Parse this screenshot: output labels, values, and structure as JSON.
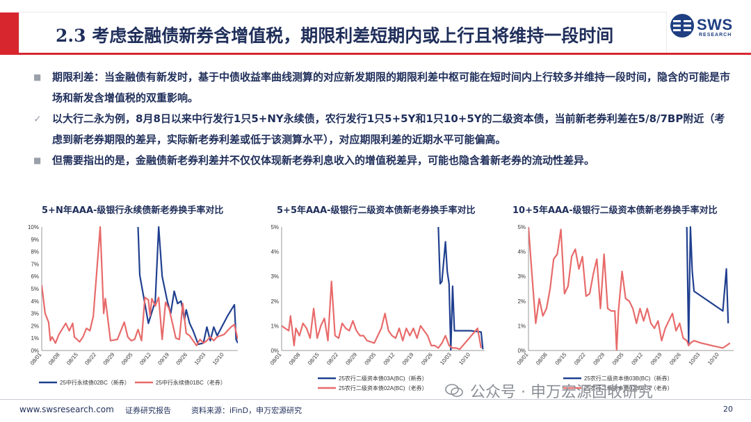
{
  "header": {
    "title": "2.3 考虑金融债新券含增值税，期限利差短期内或上行且将维持一段时间",
    "logo_text": "SWS",
    "logo_sub": "RESEARCH",
    "accent_color": "#d7262e",
    "navy_color": "#1f2e5a"
  },
  "bullets": [
    {
      "marker": "■",
      "text": "期限利差：当金融债有新发时，基于中债收益率曲线测算的对应新发期限的期限利差中枢可能在短时间内上行较多并维持一段时间，隐含的可能是市场和新发含增值税的双重影响。"
    },
    {
      "marker": "✓",
      "text": "以大行二永为例，8月8日以来中行发行1只5+NY永续债，农行发行1只5+5Y和1只10+5Y的二级资本债，当前新老券利差在5/8/7BP附近（考虑到新老券期限的差异，实际新老券利差或低于该测算水平），对应期限利差的近期水平可能偏高。"
    },
    {
      "marker": "■",
      "text": "但需要指出的是，金融债新老券利差并不仅仅体现新老券利息收入的增值税差异，可能也隐含着新老券的流动性差异。"
    }
  ],
  "chart_data": [
    {
      "type": "line",
      "title": "5+N年AAA-级银行永续债新老券换手率对比",
      "x_ticks": [
        "08/01",
        "08/08",
        "08/15",
        "08/22",
        "08/29",
        "09/05",
        "09/12",
        "09/19",
        "09/26",
        "10/03",
        "10/10"
      ],
      "y_ticks": [
        "0%",
        "1%",
        "2%",
        "3%",
        "4%",
        "5%",
        "6%",
        "7%",
        "8%",
        "9%",
        "10%"
      ],
      "ylim": [
        0,
        10
      ],
      "series": [
        {
          "name": "25中行永续债02BC（新券）",
          "color": "#1f3f8f",
          "points": [
            [
              28,
              10
            ],
            [
              28.5,
              6.1
            ],
            [
              31,
              2.2
            ],
            [
              33,
              4
            ],
            [
              34,
              10.2
            ],
            [
              35,
              6
            ],
            [
              36.5,
              4
            ],
            [
              37.5,
              3
            ],
            [
              38.5,
              4.8
            ],
            [
              39.5,
              3.8
            ],
            [
              40.5,
              4
            ],
            [
              41.5,
              2.5
            ],
            [
              42,
              3.3
            ],
            [
              43,
              2.2
            ],
            [
              44,
              1.6
            ],
            [
              45.5,
              0.5
            ],
            [
              47,
              0.6
            ],
            [
              48,
              1.9
            ],
            [
              49,
              0.8
            ],
            [
              50,
              1.9
            ],
            [
              51,
              1.2
            ],
            [
              54,
              2.8
            ],
            [
              56,
              3.7
            ],
            [
              56.5,
              0.9
            ],
            [
              57,
              0.6
            ]
          ]
        },
        {
          "name": "25中行永续债01BC（老券）",
          "color": "#e86a6a",
          "points": [
            [
              0,
              5.3
            ],
            [
              1,
              3
            ],
            [
              2,
              2.3
            ],
            [
              2.5,
              0.8
            ],
            [
              3,
              1.1
            ],
            [
              4,
              0.6
            ],
            [
              5,
              1.3
            ],
            [
              7,
              2.2
            ],
            [
              8,
              1.6
            ],
            [
              9,
              2.2
            ],
            [
              9.5,
              1.1
            ],
            [
              11,
              0.7
            ],
            [
              12,
              1.1
            ],
            [
              13,
              1.8
            ],
            [
              14,
              1.6
            ],
            [
              15,
              2.8
            ],
            [
              17,
              10
            ],
            [
              18,
              3
            ],
            [
              18.5,
              4.2
            ],
            [
              20,
              0.8
            ],
            [
              22,
              0.9
            ],
            [
              24,
              2.3
            ],
            [
              25,
              1.1
            ],
            [
              26,
              0.8
            ],
            [
              27,
              0.9
            ],
            [
              28,
              1.7
            ],
            [
              29,
              0.8
            ],
            [
              30,
              4.3
            ],
            [
              31,
              4.1
            ],
            [
              31.5,
              2.8
            ],
            [
              32,
              4.2
            ],
            [
              33,
              3.6
            ],
            [
              34,
              4.3
            ],
            [
              35,
              0.9
            ],
            [
              36,
              3.9
            ],
            [
              37,
              3.4
            ],
            [
              38,
              2.2
            ],
            [
              39,
              1
            ],
            [
              40,
              0.9
            ],
            [
              41,
              3.8
            ],
            [
              42,
              1.4
            ],
            [
              43,
              1.2
            ],
            [
              44,
              0.8
            ],
            [
              45,
              0.4
            ],
            [
              46,
              0.9
            ],
            [
              47,
              0.6
            ],
            [
              48,
              0.8
            ],
            [
              49,
              1.1
            ],
            [
              50,
              0.8
            ],
            [
              51,
              1.1
            ],
            [
              52,
              1.2
            ],
            [
              53,
              1.3
            ],
            [
              54,
              1.6
            ],
            [
              55,
              1.9
            ],
            [
              56,
              2.1
            ],
            [
              57,
              0.9
            ]
          ]
        }
      ]
    },
    {
      "type": "line",
      "title": "5+5年AAA-级银行二级资本债新老券换手率对比",
      "x_ticks": [
        "08/01",
        "08/08",
        "08/15",
        "08/22",
        "08/29",
        "09/05",
        "09/12",
        "09/19",
        "09/26",
        "10/03",
        "10/10"
      ],
      "y_ticks": [
        "0%",
        "1%",
        "2%",
        "3%",
        "4%",
        "5%"
      ],
      "ylim": [
        0,
        5
      ],
      "series": [
        {
          "name": "25农行二级资本债03A(BC)（新券）",
          "color": "#1f3f8f",
          "points": [
            [
              44,
              5.1
            ],
            [
              44.5,
              2.7
            ],
            [
              45,
              2.8
            ],
            [
              46,
              4.4
            ],
            [
              46.5,
              3.2
            ],
            [
              47,
              2.7
            ],
            [
              47.5,
              0
            ],
            [
              48,
              2.6
            ],
            [
              48.5,
              0.8
            ],
            [
              53,
              0.8
            ],
            [
              56,
              0.75
            ],
            [
              56.5,
              0.05
            ]
          ]
        },
        {
          "name": "25农行二级资本债02A(BC)（老券）",
          "color": "#e86a6a",
          "points": [
            [
              0,
              1
            ],
            [
              1,
              0.9
            ],
            [
              2,
              0.8
            ],
            [
              2.5,
              1.4
            ],
            [
              3,
              0.8
            ],
            [
              3.5,
              0.2
            ],
            [
              4,
              0.9
            ],
            [
              5,
              0.6
            ],
            [
              6,
              1.1
            ],
            [
              7,
              0.9
            ],
            [
              8,
              0.5
            ],
            [
              9,
              1.7
            ],
            [
              10,
              0.5
            ],
            [
              11,
              1
            ],
            [
              12,
              1.3
            ],
            [
              13,
              0.4
            ],
            [
              14,
              2.8
            ],
            [
              15,
              0.6
            ],
            [
              16,
              0.5
            ],
            [
              17,
              1.1
            ],
            [
              18,
              0.9
            ],
            [
              19,
              0.8
            ],
            [
              20,
              1.2
            ],
            [
              21,
              0.8
            ],
            [
              22,
              0.6
            ],
            [
              23,
              0.6
            ],
            [
              24,
              0.4
            ],
            [
              25,
              0.35
            ],
            [
              26,
              0.3
            ],
            [
              27,
              0.6
            ],
            [
              28,
              0.9
            ],
            [
              29,
              1.5
            ],
            [
              30,
              0.8
            ],
            [
              31,
              0.6
            ],
            [
              32,
              0.5
            ],
            [
              33,
              0.9
            ],
            [
              34,
              0.4
            ],
            [
              35,
              0.9
            ],
            [
              36,
              0.6
            ],
            [
              37,
              0.9
            ],
            [
              38,
              0.5
            ],
            [
              39,
              1
            ],
            [
              40,
              0.8
            ],
            [
              41,
              0.6
            ],
            [
              42,
              0.2
            ],
            [
              43,
              0.2
            ],
            [
              44,
              0.1
            ],
            [
              45,
              0.3
            ],
            [
              46,
              0.6
            ],
            [
              47,
              0.2
            ],
            [
              48,
              0.1
            ],
            [
              49,
              0.1
            ],
            [
              50,
              0.05
            ],
            [
              55,
              0.9
            ],
            [
              56,
              0.1
            ]
          ]
        }
      ]
    },
    {
      "type": "line",
      "title": "10+5年AAA-级银行二级资本债新老券换手率对比",
      "x_ticks": [
        "08/01",
        "08/08",
        "08/15",
        "08/22",
        "08/29",
        "09/05",
        "09/12",
        "09/19",
        "09/26",
        "10/03",
        "10/10"
      ],
      "y_ticks": [
        "0%",
        "1%",
        "2%",
        "3%",
        "4%",
        "5%"
      ],
      "ylim": [
        0,
        5
      ],
      "series": [
        {
          "name": "25农行二级资本债03B(BC)（新券）",
          "color": "#1f3f8f",
          "points": [
            [
              44,
              5.1
            ],
            [
              44.5,
              0.3
            ],
            [
              45,
              5
            ],
            [
              45.5,
              3.2
            ],
            [
              46,
              2.4
            ],
            [
              54,
              1.6
            ],
            [
              55,
              3.3
            ],
            [
              55.5,
              1.1
            ]
          ]
        },
        {
          "name": "25农行二级资本债02B(BC)（老券）",
          "color": "#e86a6a",
          "points": [
            [
              0,
              5
            ],
            [
              1,
              3
            ],
            [
              2,
              1.1
            ],
            [
              3,
              2.1
            ],
            [
              4,
              1.4
            ],
            [
              5,
              1.7
            ],
            [
              6,
              2.5
            ],
            [
              7,
              3.7
            ],
            [
              8,
              3.9
            ],
            [
              9,
              4.9
            ],
            [
              10,
              2.3
            ],
            [
              11,
              2.6
            ],
            [
              12,
              3.8
            ],
            [
              13,
              4.1
            ],
            [
              14,
              3.3
            ],
            [
              15,
              3.8
            ],
            [
              16,
              2.2
            ],
            [
              17,
              2.3
            ],
            [
              18,
              3.1
            ],
            [
              19,
              3.7
            ],
            [
              20,
              1.7
            ],
            [
              21,
              3.9
            ],
            [
              22,
              1.7
            ],
            [
              23,
              1.6
            ],
            [
              24,
              1.6
            ],
            [
              24.5,
              0
            ],
            [
              25,
              1.6
            ],
            [
              26,
              3.2
            ],
            [
              27,
              2.1
            ],
            [
              28,
              2
            ],
            [
              29,
              1.7
            ],
            [
              30,
              1.1
            ],
            [
              31,
              1.7
            ],
            [
              32,
              1.2
            ],
            [
              33,
              1.7
            ],
            [
              34,
              1.1
            ],
            [
              35,
              0.9
            ],
            [
              36,
              1.2
            ],
            [
              37,
              0.4
            ],
            [
              38,
              0.9
            ],
            [
              39,
              1.2
            ],
            [
              40,
              1.5
            ],
            [
              41,
              0.8
            ],
            [
              42,
              1.1
            ],
            [
              43,
              0.5
            ],
            [
              44,
              0.4
            ],
            [
              44.5,
              0.2
            ],
            [
              45,
              0.3
            ],
            [
              46,
              0.4
            ],
            [
              48,
              0.3
            ],
            [
              51,
              0.2
            ],
            [
              54,
              0.1
            ],
            [
              55,
              0.2
            ],
            [
              56,
              0.3
            ]
          ]
        }
      ]
    }
  ],
  "footer": {
    "url": "www.swsresearch.com",
    "report": "证券研究报告",
    "source": "资料来源：iFinD，申万宏源研究",
    "page": "20",
    "watermark": "公众号 · 申万宏源固收研究"
  }
}
